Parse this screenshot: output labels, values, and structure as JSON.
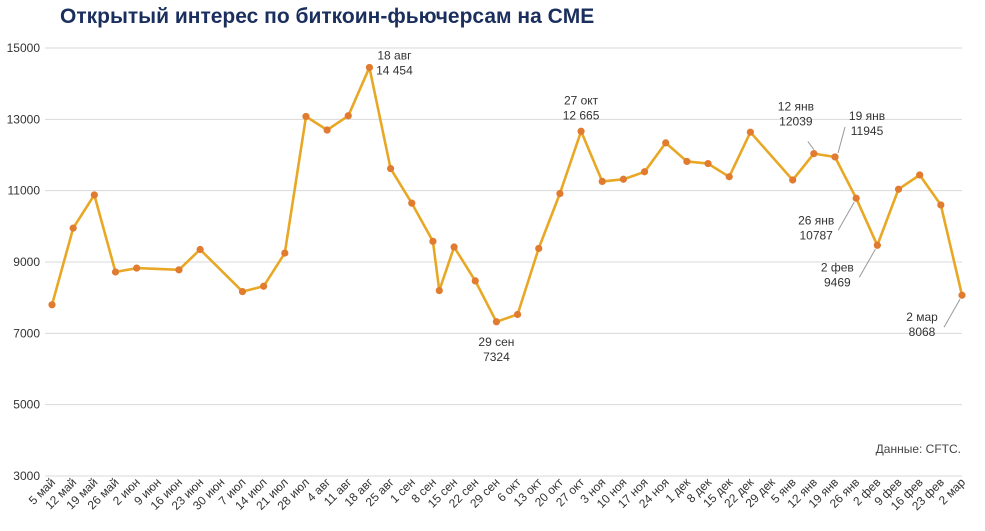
{
  "title": "Открытый интерес по биткоин-фьючерсам на CME",
  "source": "Данные: CFTC.",
  "chart_data": {
    "type": "line",
    "ylim": [
      3000,
      15000
    ],
    "yticks": [
      3000,
      5000,
      7000,
      9000,
      11000,
      13000,
      15000
    ],
    "grid": true,
    "series_color": "#e8a825",
    "marker_color": "#e07b30",
    "x_labels": [
      "5 май",
      "12 май",
      "19 май",
      "26 май",
      "2 июн",
      "9 июн",
      "16 июн",
      "23 июн",
      "30 июн",
      "7 июл",
      "14 июл",
      "21 июл",
      "28 июл",
      "4 авг",
      "11 авг",
      "18 авг",
      "25 авг",
      "1 сен",
      "8 сен",
      "15 сен",
      "22 сен",
      "29 сен",
      "6 окт",
      "13 окт",
      "20 окт",
      "27 окт",
      "3 ноя",
      "10 ноя",
      "17 ноя",
      "24 ноя",
      "1 дек",
      "8 дек",
      "15 дек",
      "22 дек",
      "29 дек",
      "5 янв",
      "12 янв",
      "19 янв",
      "26 янв",
      "2 фев",
      "9 фев",
      "16 фев",
      "23 фев",
      "2 мар"
    ],
    "points": [
      {
        "x": 0,
        "y": 7800
      },
      {
        "x": 1,
        "y": 9950
      },
      {
        "x": 2,
        "y": 10880
      },
      {
        "x": 3,
        "y": 8720
      },
      {
        "x": 4,
        "y": 8830
      },
      {
        "x": 6,
        "y": 8780
      },
      {
        "x": 7,
        "y": 9350
      },
      {
        "x": 9,
        "y": 8170
      },
      {
        "x": 10,
        "y": 8320
      },
      {
        "x": 11,
        "y": 9250
      },
      {
        "x": 12,
        "y": 13080
      },
      {
        "x": 13,
        "y": 12700
      },
      {
        "x": 14,
        "y": 13100
      },
      {
        "x": 15,
        "y": 14454
      },
      {
        "x": 16,
        "y": 11620
      },
      {
        "x": 17,
        "y": 10650
      },
      {
        "x": 18,
        "y": 9580
      },
      {
        "x": 18.3,
        "y": 8200
      },
      {
        "x": 19,
        "y": 9420
      },
      {
        "x": 20,
        "y": 8470
      },
      {
        "x": 21,
        "y": 7324
      },
      {
        "x": 22,
        "y": 7530
      },
      {
        "x": 23,
        "y": 9380
      },
      {
        "x": 24,
        "y": 10920
      },
      {
        "x": 25,
        "y": 12665
      },
      {
        "x": 26,
        "y": 11260
      },
      {
        "x": 27,
        "y": 11320
      },
      {
        "x": 28,
        "y": 11530
      },
      {
        "x": 29,
        "y": 12340
      },
      {
        "x": 30,
        "y": 11820
      },
      {
        "x": 31,
        "y": 11760
      },
      {
        "x": 32,
        "y": 11390
      },
      {
        "x": 33,
        "y": 12640
      },
      {
        "x": 35,
        "y": 11300
      },
      {
        "x": 36,
        "y": 12039
      },
      {
        "x": 37,
        "y": 11945
      },
      {
        "x": 38,
        "y": 10787
      },
      {
        "x": 39,
        "y": 9469
      },
      {
        "x": 40,
        "y": 11040
      },
      {
        "x": 41,
        "y": 11440
      },
      {
        "x": 42,
        "y": 10600
      },
      {
        "x": 43,
        "y": 8068
      }
    ],
    "annotations": [
      {
        "x": 15,
        "y": 14454,
        "line1": "18 авг",
        "line2": "14 454",
        "pos": "right-above"
      },
      {
        "x": 21,
        "y": 7324,
        "line1": "29 сен",
        "line2": "7324",
        "pos": "below"
      },
      {
        "x": 25,
        "y": 12665,
        "line1": "27 окт",
        "line2": "12 665",
        "pos": "above"
      },
      {
        "x": 36,
        "y": 12039,
        "line1": "12 янв",
        "line2": "12039",
        "pos": "above-leader"
      },
      {
        "x": 37,
        "y": 11945,
        "line1": "19 янв",
        "line2": "11945",
        "pos": "right-leader"
      },
      {
        "x": 38,
        "y": 10787,
        "line1": "26 янв",
        "line2": "10787",
        "pos": "left-below-leader"
      },
      {
        "x": 39,
        "y": 9469,
        "line1": "2 фев",
        "line2": "9469",
        "pos": "left-below-leader"
      },
      {
        "x": 43,
        "y": 8068,
        "line1": "2 мар",
        "line2": "8068",
        "pos": "left-below-leader"
      }
    ]
  }
}
